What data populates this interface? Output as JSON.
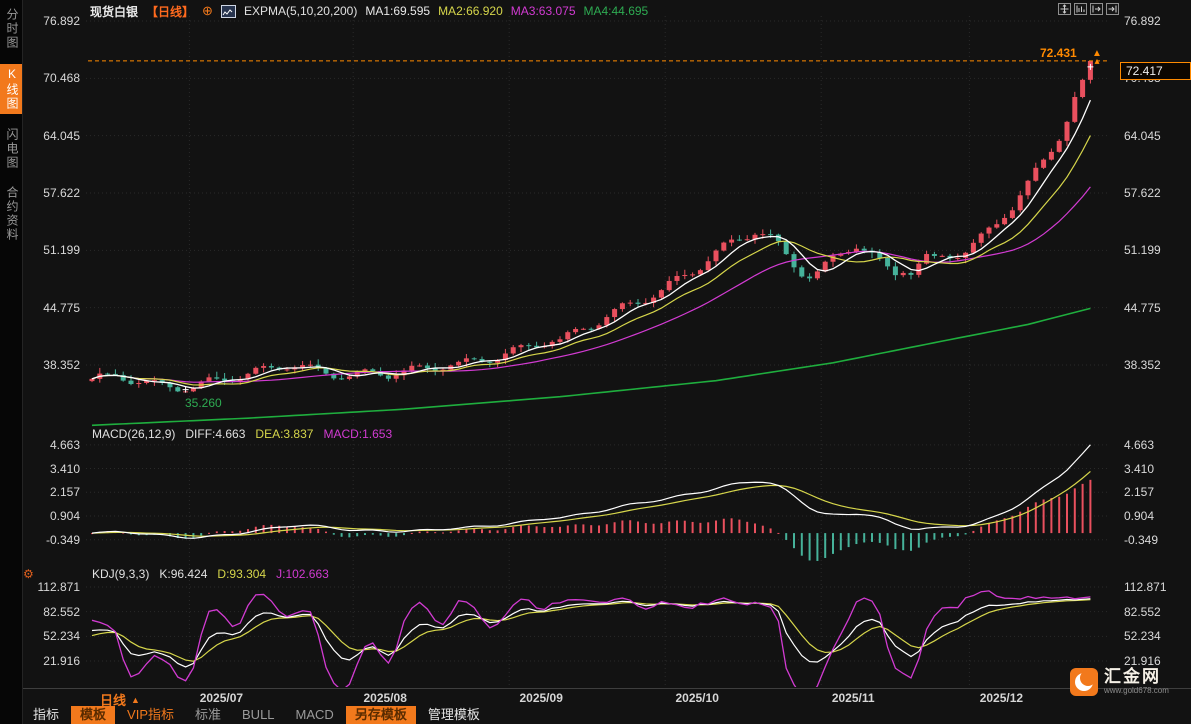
{
  "header": {
    "symbol": "现货白银",
    "period": "【日线】",
    "target_icon": "⊕",
    "indicator": "EXPMA(5,10,20,200)",
    "ma1": "MA1:69.595",
    "ma2": "MA2:66.920",
    "ma3": "MA3:63.075",
    "ma4": "MA4:44.695"
  },
  "sidebar": {
    "tabs": [
      {
        "label": "分时图",
        "active": false
      },
      {
        "label": "K线图",
        "active": true
      },
      {
        "label": "闪电图",
        "active": false
      },
      {
        "label": "合约资料",
        "active": false
      }
    ]
  },
  "toolbar_icons": [
    "pan-icon",
    "scale-axis-icon",
    "page-forward-icon",
    "jump-to-latest-icon"
  ],
  "chart_data": {
    "type": "candlestick",
    "title": "现货白银 日线 EXPMA(5,10,20,200)",
    "x_labels": [
      "2025/07",
      "2025/08",
      "2025/09",
      "2025/10",
      "2025/11",
      "2025/12"
    ],
    "month_start_indices": [
      13,
      34,
      54,
      74,
      94,
      113
    ],
    "price_ticks": [
      "76.892",
      "70.468",
      "64.045",
      "57.622",
      "51.199",
      "44.775",
      "38.352"
    ],
    "closes": [
      36.8,
      37.0,
      36.9,
      37.1,
      36.9,
      36.7,
      36.6,
      36.4,
      36.2,
      36.0,
      35.9,
      35.7,
      35.6,
      35.9,
      36.2,
      36.5,
      36.6,
      36.8,
      36.9,
      37.1,
      37.3,
      37.6,
      37.8,
      38.0,
      38.2,
      38.35,
      38.3,
      38.1,
      37.9,
      37.7,
      37.5,
      37.3,
      37.2,
      37.1,
      37.25,
      37.4,
      37.5,
      37.45,
      37.3,
      37.5,
      37.6,
      37.8,
      37.9,
      38.0,
      38.15,
      38.3,
      38.45,
      38.4,
      38.6,
      38.75,
      38.9,
      39.1,
      39.3,
      39.6,
      39.9,
      40.1,
      40.4,
      40.7,
      41.0,
      41.2,
      41.0,
      41.5,
      42.0,
      42.5,
      42.9,
      43.3,
      43.8,
      44.2,
      44.7,
      45.1,
      45.5,
      45.9,
      46.3,
      46.6,
      47.2,
      47.8,
      48.4,
      49.0,
      49.6,
      50.2,
      50.8,
      51.4,
      52.0,
      52.6,
      53.1,
      53.5,
      53.0,
      52.4,
      51.6,
      50.6,
      49.7,
      48.9,
      48.4,
      48.6,
      49.3,
      50.1,
      50.9,
      51.6,
      52.0,
      51.3,
      50.5,
      49.7,
      49.1,
      48.7,
      49.3,
      48.9,
      49.6,
      50.2,
      50.0,
      50.5,
      50.8,
      51.0,
      51.2,
      51.7,
      52.4,
      53.3,
      54.3,
      55.5,
      56.3,
      57.4,
      58.4,
      59.7,
      61.1,
      62.7,
      64.3,
      66.1,
      68.1,
      70.3,
      72.417
    ],
    "low_annotation": {
      "index": 12,
      "value": 35.26,
      "label": "35.260"
    },
    "high_annotation": {
      "value": 72.431,
      "label": "72.431"
    },
    "last_price": {
      "value": 72.417,
      "label": "72.417"
    },
    "ma200_points": [
      [
        0,
        31.6
      ],
      [
        20,
        32.4
      ],
      [
        40,
        33.4
      ],
      [
        60,
        34.8
      ],
      [
        80,
        36.6
      ],
      [
        95,
        38.6
      ],
      [
        110,
        41.2
      ],
      [
        120,
        42.9
      ],
      [
        128,
        44.7
      ]
    ],
    "macd": {
      "label": "MACD(26,12,9)",
      "diff_label": "DIFF:4.663",
      "dea_label": "DEA:3.837",
      "macd_label": "MACD:1.653",
      "diff_end": 4.663,
      "ticks": [
        "4.663",
        "3.410",
        "2.157",
        "0.904",
        "-0.349"
      ]
    },
    "kdj": {
      "label": "KDJ(9,3,3)",
      "k_label": "K:96.424",
      "d_label": "D:93.304",
      "j_label": "J:102.663",
      "ticks": [
        "112.871",
        "82.552",
        "52.234",
        "21.916"
      ]
    }
  },
  "bottom": {
    "period": "日线",
    "period_arrow": "▲",
    "tabs": [
      {
        "label": "指标",
        "style": "plain"
      },
      {
        "label": "模板",
        "style": "active"
      },
      {
        "label": "VIP指标",
        "style": "vip"
      },
      {
        "label": "标准",
        "style": "dim"
      },
      {
        "label": "BULL",
        "style": "dim"
      },
      {
        "label": "MACD",
        "style": "dim"
      },
      {
        "label": "另存模板",
        "style": "active"
      },
      {
        "label": "管理模板",
        "style": "plain"
      }
    ]
  },
  "logo": {
    "name": "汇金网",
    "url_text": "www.gold678.com"
  },
  "colors": {
    "up_candle": "#e9505e",
    "down_candle": "#46b29a",
    "ma5": "#ffffff",
    "ma10": "#d6d64b",
    "ma20": "#d23bd2",
    "ma200": "#1fae3e",
    "accent_orange": "#f2791c",
    "dashed_line": "#ff8a00",
    "low_label_green": "#2eab52",
    "grid": "#2a2a2a",
    "tick_text": "#d9d9d9"
  }
}
